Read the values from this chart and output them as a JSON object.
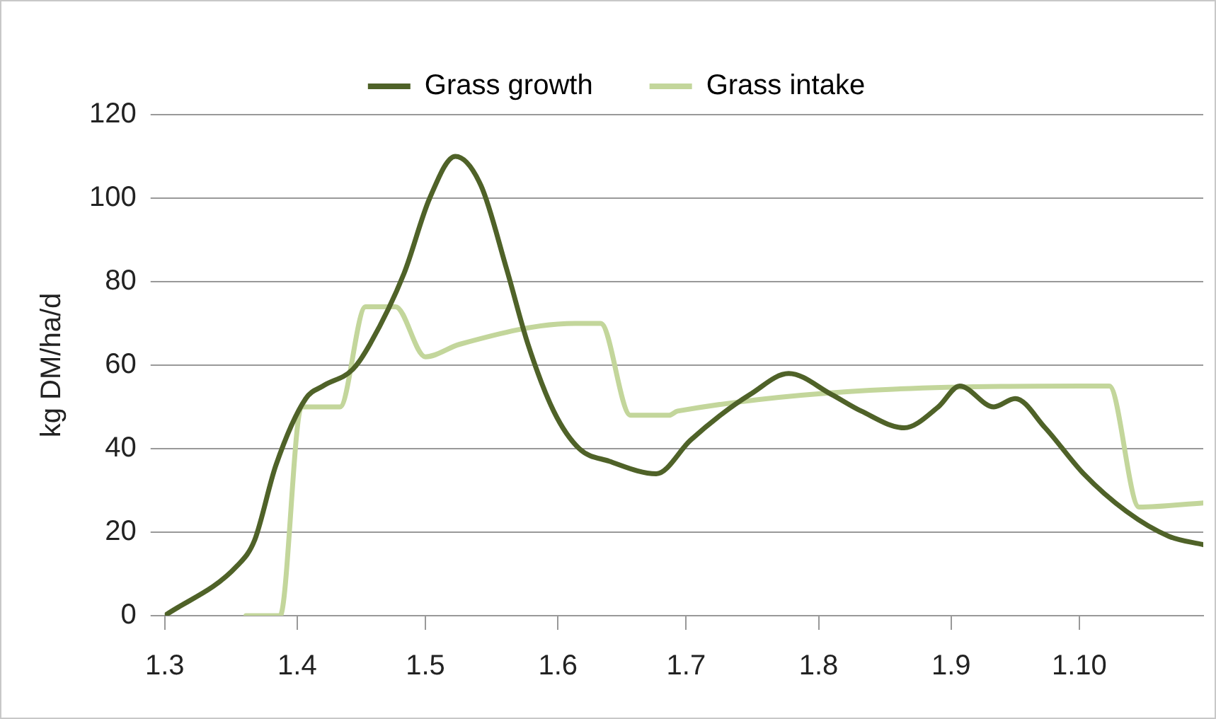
{
  "chart_data": {
    "type": "line",
    "ylabel": "kg DM/ha/d",
    "legend": "top",
    "grid": "y",
    "marker": "none",
    "line_style": "solid",
    "xlim": [
      "--03-01",
      "--10-30"
    ],
    "ylim": [
      0,
      120
    ],
    "yticks": [
      0,
      20,
      40,
      60,
      80,
      100,
      120
    ],
    "xticks": [
      {
        "value": "--03-01",
        "label": "1.3"
      },
      {
        "value": "--04-01",
        "label": "1.4"
      },
      {
        "value": "--05-01",
        "label": "1.5"
      },
      {
        "value": "--06-01",
        "label": "1.6"
      },
      {
        "value": "--07-01",
        "label": "1.7"
      },
      {
        "value": "--08-01",
        "label": "1.8"
      },
      {
        "value": "--09-01",
        "label": "1.9"
      },
      {
        "value": "--10-01",
        "label": "1.10"
      }
    ],
    "series": [
      {
        "name": "Grass growth",
        "color": "#4f6228",
        "x": [
          "--03-01",
          "--03-18",
          "--03-22",
          "--03-27",
          "--04-03",
          "--04-07",
          "--04-14",
          "--04-18",
          "--04-26",
          "--05-02",
          "--05-08",
          "--05-14",
          "--05-20",
          "--05-25",
          "--05-31",
          "--06-06",
          "--06-13",
          "--06-24",
          "--07-02",
          "--07-09",
          "--07-16",
          "--07-25",
          "--08-04",
          "--08-11",
          "--08-21",
          "--08-29",
          "--09-03",
          "--09-11",
          "--09-16",
          "--09-23",
          "--10-02",
          "--10-12",
          "--10-22",
          "--10-30"
        ],
        "values": [
          0,
          12,
          18,
          36,
          52,
          55,
          59,
          65,
          82,
          100,
          110,
          103,
          83,
          65,
          49,
          40,
          37,
          34,
          42,
          48,
          53,
          58,
          53,
          49,
          45,
          50,
          55,
          50,
          52,
          45,
          34,
          25,
          19,
          17
        ]
      },
      {
        "name": "Grass intake",
        "color": "#c3d69b",
        "x": [
          "--03-20",
          "--03-28",
          "--04-02",
          "--04-11",
          "--04-17",
          "--04-24",
          "--05-01",
          "--05-09",
          "--06-05",
          "--06-11",
          "--06-18",
          "--06-27",
          "--06-29",
          "--10-08",
          "--10-15",
          "--10-30"
        ],
        "values": [
          0,
          0,
          50,
          50,
          74,
          74,
          62,
          65,
          70,
          70,
          48,
          48,
          49,
          55,
          26,
          27
        ]
      }
    ]
  }
}
